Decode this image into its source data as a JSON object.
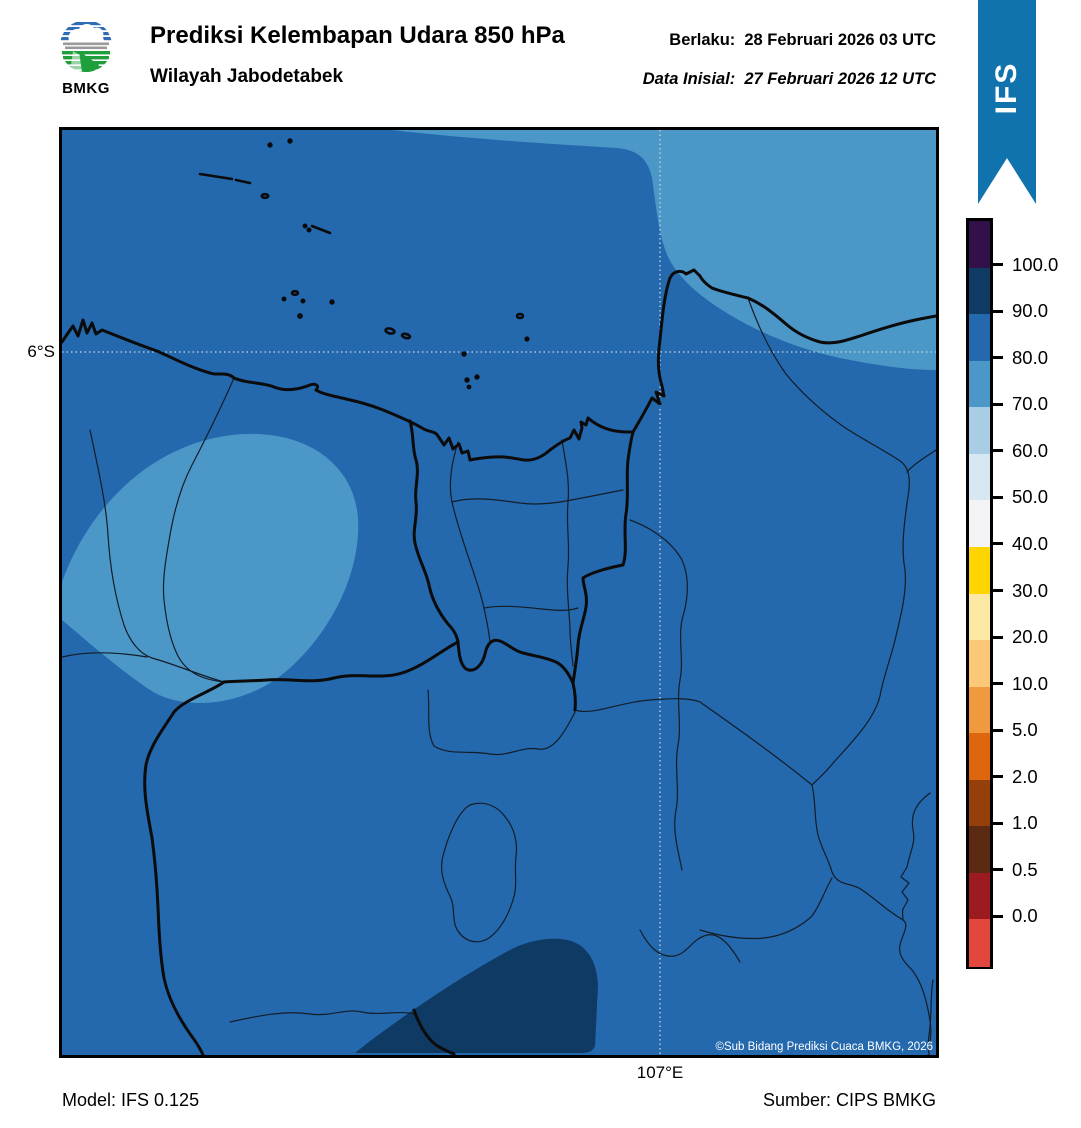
{
  "header": {
    "logo_text": "BMKG",
    "title": "Prediksi Kelembapan Udara 850 hPa",
    "subtitle": "Wilayah Jabodetabek",
    "valid_label": "Berlaku:",
    "valid_value": "28 Februari 2026 03 UTC",
    "initial_label": "Data Inisial:",
    "initial_value": "27 Februari 2026 12 UTC",
    "ribbon_text": "IFS",
    "ribbon_color": "#1173ad"
  },
  "map": {
    "lat_label": "6°S",
    "lon_label": "107°E",
    "copyright": "©Sub Bidang Prediksi Cuaca BMKG, 2026",
    "colors": {
      "humidity_80_90": "#2468ad",
      "humidity_70_80": "#4b97c8",
      "humidity_90_100": "#0e3a63",
      "gridline": "#c9d5dd",
      "coast": "#0b0b0b",
      "boundary_thin": "#131d28"
    }
  },
  "colorbar": {
    "unit": "%",
    "tick_labels": [
      "100.0",
      "90.0",
      "80.0",
      "70.0",
      "60.0",
      "50.0",
      "40.0",
      "30.0",
      "20.0",
      "10.0",
      "5.0",
      "2.0",
      "1.0",
      "0.5",
      "0.0"
    ],
    "segment_colors": [
      "#321049",
      "#0e3a63",
      "#2468ad",
      "#4b97c8",
      "#a8cde4",
      "#d7e8f3",
      "#f4f4f6",
      "#fed500",
      "#fbe8a5",
      "#fcc878",
      "#f0993e",
      "#dd660f",
      "#95400b",
      "#5c2a12",
      "#9c1b20",
      "#e2473d"
    ]
  },
  "footer": {
    "model": "Model: IFS 0.125",
    "source": "Sumber: CIPS BMKG"
  }
}
